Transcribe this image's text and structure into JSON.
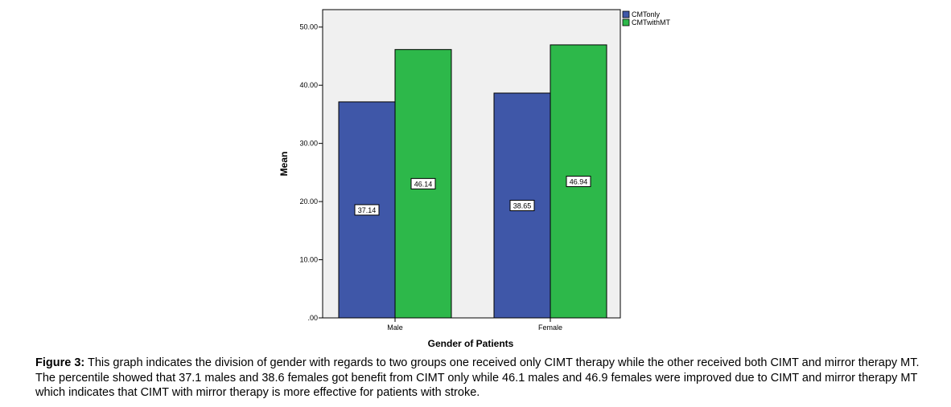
{
  "chart_data": {
    "type": "bar",
    "categories": [
      "Male",
      "Female"
    ],
    "series": [
      {
        "name": "CMTonly",
        "values": [
          37.14,
          38.65
        ],
        "color": "#3f57a8"
      },
      {
        "name": "CMTwithMT",
        "values": [
          46.14,
          46.94
        ],
        "color": "#2db84a"
      }
    ],
    "data_labels": [
      [
        "37.14",
        "38.65"
      ],
      [
        "46.14",
        "46.94"
      ]
    ],
    "title": "",
    "xlabel": "Gender of Patients",
    "ylabel": "Mean",
    "ylim": [
      0,
      53
    ],
    "yticks": [
      0,
      10,
      20,
      30,
      40,
      50
    ],
    "ytick_labels": [
      ".00",
      "10.00",
      "20.00",
      "30.00",
      "40.00",
      "50.00"
    ],
    "grid": false,
    "legend_position": "top-right",
    "plot_background": "#f0f0f0"
  },
  "caption": {
    "label": "Figure 3:",
    "text": "This graph indicates the division of gender with regards to two groups one received only CIMT therapy while the other received both CIMT and mirror therapy MT. The percentile showed that 37.1 males and 38.6 females got benefit from CIMT only while 46.1 males and 46.9 females were improved due to CIMT and mirror therapy MT which indicates that CIMT with mirror therapy is more effective for patients with stroke."
  }
}
